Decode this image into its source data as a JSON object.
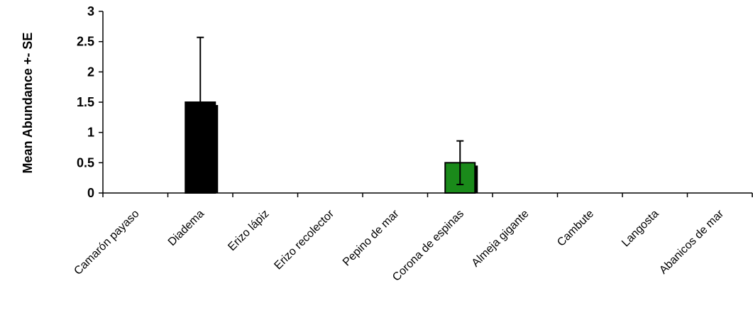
{
  "chart_data": {
    "type": "bar",
    "title": "",
    "xlabel": "",
    "ylabel": "Mean Abundance +- SE",
    "ylim": [
      0,
      3
    ],
    "yticks": [
      0,
      0.5,
      1,
      1.5,
      2,
      2.5,
      3
    ],
    "ytick_labels": [
      "0",
      "0.5",
      "1",
      "1.5",
      "2",
      "2.5",
      "3"
    ],
    "grid": false,
    "legend": "none",
    "categories": [
      "Camarón payaso",
      "Diadema",
      "Erizo lápiz",
      "Erizo recolector",
      "Pepino de mar",
      "Corona de espinas",
      "Almeja gigante",
      "Cambute",
      "Langosta",
      "Abanicos de mar"
    ],
    "values": [
      0,
      1.5,
      0,
      0,
      0,
      0.5,
      0,
      0,
      0,
      0
    ],
    "errors": [
      0,
      1.07,
      0,
      0,
      0,
      0.36,
      0,
      0,
      0,
      0
    ],
    "bar_colors": [
      "#000000",
      "#000000",
      "#000000",
      "#000000",
      "#000000",
      "#1a8a1a",
      "#000000",
      "#000000",
      "#000000",
      "#000000"
    ],
    "shadow_color": "#000000",
    "axis_color": "#000000"
  }
}
